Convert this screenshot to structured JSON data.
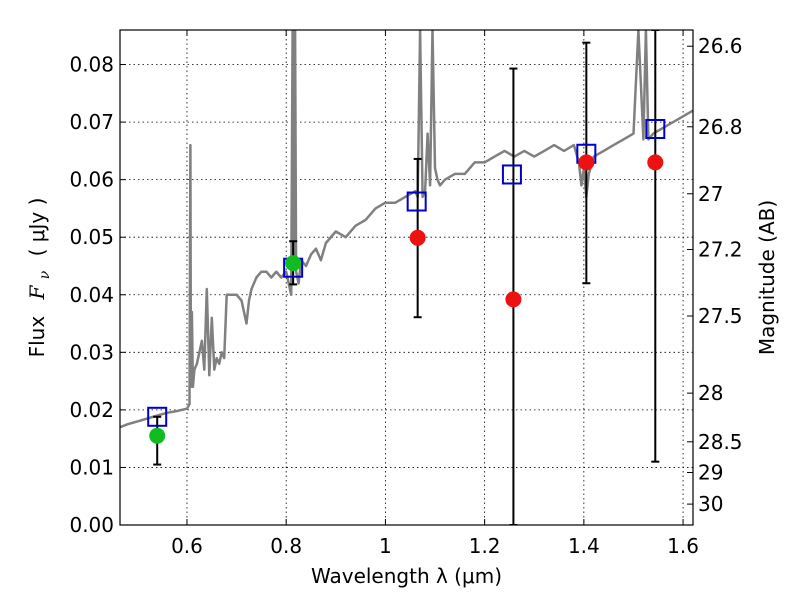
{
  "chart_data": {
    "type": "scatter",
    "xlabel": "Wavelength  λ (μm)",
    "ylabel_parts": [
      "Flux",
      "F",
      "ν",
      "( μJy )"
    ],
    "y2label": "Magnitude (AB)",
    "xlim": [
      0.465,
      1.62
    ],
    "ylim": [
      0.0,
      0.086
    ],
    "grid": true,
    "x_ticks": [
      0.6,
      0.8,
      1.0,
      1.2,
      1.4,
      1.6
    ],
    "x_tick_labels": [
      "0.6",
      "0.8",
      "1",
      "1.2",
      "1.4",
      "1.6"
    ],
    "y_ticks": [
      0.0,
      0.01,
      0.02,
      0.03,
      0.04,
      0.05,
      0.06,
      0.07,
      0.08
    ],
    "y_tick_labels": [
      "0.00",
      "0.01",
      "0.02",
      "0.03",
      "0.04",
      "0.05",
      "0.06",
      "0.07",
      "0.08"
    ],
    "y2_ticks": [
      26.6,
      26.8,
      27,
      27.2,
      27.5,
      28,
      28.5,
      29,
      30
    ],
    "y2_tick_labels": [
      "26.6",
      "26.8",
      "27",
      "27.2",
      "27.5",
      "28",
      "28.5",
      "29",
      "30"
    ],
    "series": [
      {
        "name": "model_spectrum",
        "kind": "line",
        "color": "#808080",
        "x": [
          0.465,
          0.48,
          0.5,
          0.52,
          0.54,
          0.56,
          0.58,
          0.6,
          0.605,
          0.607,
          0.608,
          0.61,
          0.612,
          0.615,
          0.62,
          0.63,
          0.635,
          0.64,
          0.645,
          0.65,
          0.655,
          0.66,
          0.665,
          0.67,
          0.675,
          0.68,
          0.69,
          0.7,
          0.71,
          0.72,
          0.725,
          0.73,
          0.74,
          0.75,
          0.76,
          0.77,
          0.78,
          0.79,
          0.8,
          0.805,
          0.81,
          0.813,
          0.815,
          0.818,
          0.82,
          0.825,
          0.83,
          0.84,
          0.85,
          0.86,
          0.87,
          0.88,
          0.9,
          0.92,
          0.94,
          0.96,
          0.98,
          1.0,
          1.02,
          1.04,
          1.06,
          1.065,
          1.07,
          1.075,
          1.08,
          1.085,
          1.09,
          1.095,
          1.1,
          1.105,
          1.11,
          1.12,
          1.14,
          1.16,
          1.18,
          1.2,
          1.22,
          1.24,
          1.26,
          1.28,
          1.3,
          1.32,
          1.34,
          1.36,
          1.38,
          1.39,
          1.395,
          1.4,
          1.405,
          1.41,
          1.42,
          1.44,
          1.46,
          1.48,
          1.5,
          1.51,
          1.52,
          1.525,
          1.53,
          1.54,
          1.56,
          1.58,
          1.6,
          1.62
        ],
        "y": [
          0.017,
          0.0175,
          0.018,
          0.0185,
          0.019,
          0.0195,
          0.0198,
          0.0202,
          0.021,
          0.066,
          0.024,
          0.037,
          0.024,
          0.027,
          0.028,
          0.032,
          0.027,
          0.041,
          0.026,
          0.036,
          0.027,
          0.029,
          0.028,
          0.03,
          0.029,
          0.04,
          0.04,
          0.04,
          0.039,
          0.035,
          0.039,
          0.041,
          0.043,
          0.044,
          0.044,
          0.043,
          0.044,
          0.043,
          0.044,
          0.042,
          0.04,
          0.086,
          0.045,
          0.086,
          0.044,
          0.042,
          0.046,
          0.045,
          0.047,
          0.048,
          0.046,
          0.049,
          0.051,
          0.05,
          0.052,
          0.053,
          0.055,
          0.056,
          0.056,
          0.057,
          0.058,
          0.057,
          0.086,
          0.057,
          0.058,
          0.068,
          0.059,
          0.086,
          0.062,
          0.06,
          0.059,
          0.06,
          0.061,
          0.061,
          0.063,
          0.063,
          0.064,
          0.065,
          0.064,
          0.065,
          0.064,
          0.065,
          0.066,
          0.065,
          0.066,
          0.063,
          0.059,
          0.062,
          0.057,
          0.061,
          0.064,
          0.065,
          0.066,
          0.067,
          0.068,
          0.086,
          0.067,
          0.086,
          0.067,
          0.068,
          0.069,
          0.07,
          0.071,
          0.072
        ]
      },
      {
        "name": "model_synthetic_photometry",
        "kind": "open_square",
        "color": "#0000cc",
        "x": [
          0.54,
          0.814,
          1.063,
          1.255,
          1.405,
          1.544
        ],
        "y": [
          0.0188,
          0.0447,
          0.0562,
          0.0609,
          0.0645,
          0.0688
        ]
      },
      {
        "name": "observed_optical",
        "kind": "filled_circle",
        "color": "#11bb22",
        "x": [
          0.54,
          0.814
        ],
        "y": [
          0.0155,
          0.0455
        ],
        "yerr_low": [
          0.0105,
          0.0418
        ],
        "yerr_high": [
          0.0188,
          0.0493
        ]
      },
      {
        "name": "observed_nir",
        "kind": "filled_circle",
        "color": "#ee1111",
        "x": [
          1.065,
          1.258,
          1.405,
          1.544
        ],
        "y": [
          0.0499,
          0.0392,
          0.063,
          0.063
        ],
        "yerr_low": [
          0.0361,
          0.0,
          0.042,
          0.011
        ],
        "yerr_high": [
          0.0636,
          0.0793,
          0.0838,
          0.086
        ]
      }
    ]
  }
}
